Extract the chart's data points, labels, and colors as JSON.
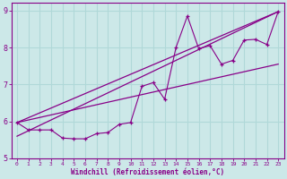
{
  "xlabel": "Windchill (Refroidissement éolien,°C)",
  "bg_color": "#cce8e8",
  "grid_color": "#b0d8d8",
  "line_color": "#880088",
  "xlim": [
    -0.5,
    23.5
  ],
  "ylim": [
    5.0,
    9.2
  ],
  "yticks": [
    5,
    6,
    7,
    8,
    9
  ],
  "xticks": [
    0,
    1,
    2,
    3,
    4,
    5,
    6,
    7,
    8,
    9,
    10,
    11,
    12,
    13,
    14,
    15,
    16,
    17,
    18,
    19,
    20,
    21,
    22,
    23
  ],
  "series1_x": [
    0,
    1,
    2,
    3,
    4,
    5,
    6,
    7,
    8,
    9,
    10,
    11,
    12,
    13,
    14,
    15,
    16,
    17,
    18,
    19,
    20,
    21,
    22,
    23
  ],
  "series1_y": [
    5.97,
    5.77,
    5.77,
    5.77,
    5.55,
    5.53,
    5.53,
    5.67,
    5.7,
    5.92,
    5.97,
    6.95,
    7.05,
    6.6,
    8.0,
    8.85,
    7.97,
    8.05,
    7.55,
    7.65,
    8.2,
    8.22,
    8.08,
    8.97
  ],
  "line2_x": [
    0,
    23
  ],
  "line2_y": [
    5.97,
    8.97
  ],
  "line3_x": [
    0,
    23
  ],
  "line3_y": [
    5.6,
    8.97
  ],
  "line4_x": [
    0,
    23
  ],
  "line4_y": [
    5.97,
    7.55
  ]
}
